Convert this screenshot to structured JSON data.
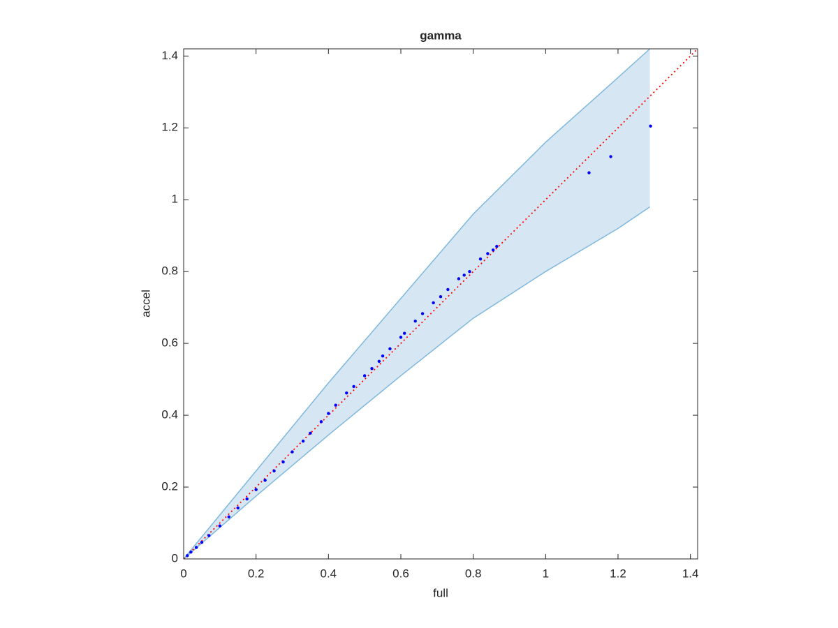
{
  "chart_data": {
    "type": "scatter",
    "title": "gamma",
    "x_label": "full",
    "y_label": "accel",
    "xlim": [
      0,
      1.42
    ],
    "ylim": [
      0,
      1.42
    ],
    "xticks": [
      0,
      0.2,
      0.4,
      0.6,
      0.8,
      1,
      1.2,
      1.4
    ],
    "yticks": [
      0,
      0.2,
      0.4,
      0.6,
      0.8,
      1,
      1.2,
      1.4
    ],
    "band": {
      "color": "#7fb8dc",
      "fill": "#d6e6f3",
      "x": [
        0,
        0.2,
        0.4,
        0.6,
        0.8,
        1.0,
        1.2,
        1.288
      ],
      "upper": [
        0,
        0.245,
        0.49,
        0.725,
        0.96,
        1.16,
        1.34,
        1.42
      ],
      "lower": [
        0,
        0.175,
        0.345,
        0.51,
        0.67,
        0.8,
        0.92,
        0.98
      ]
    },
    "reference_line": {
      "color": "#ff0000",
      "x": [
        0,
        1.42
      ],
      "y": [
        0,
        1.42
      ]
    },
    "series": [
      {
        "color": "#0000ff",
        "x": [
          0.01,
          0.02,
          0.035,
          0.05,
          0.07,
          0.1,
          0.125,
          0.15,
          0.175,
          0.2,
          0.225,
          0.25,
          0.275,
          0.3,
          0.33,
          0.35,
          0.38,
          0.4,
          0.42,
          0.45,
          0.47,
          0.5,
          0.52,
          0.54,
          0.55,
          0.57,
          0.6,
          0.61,
          0.64,
          0.66,
          0.69,
          0.71,
          0.73,
          0.76,
          0.775,
          0.79,
          0.82,
          0.84,
          0.855,
          0.865,
          1.12,
          1.18,
          1.29
        ],
        "values": [
          0.009,
          0.019,
          0.032,
          0.046,
          0.065,
          0.092,
          0.117,
          0.142,
          0.167,
          0.193,
          0.219,
          0.245,
          0.27,
          0.298,
          0.328,
          0.35,
          0.382,
          0.405,
          0.428,
          0.462,
          0.48,
          0.51,
          0.53,
          0.55,
          0.565,
          0.585,
          0.617,
          0.628,
          0.662,
          0.683,
          0.713,
          0.73,
          0.75,
          0.78,
          0.79,
          0.8,
          0.835,
          0.85,
          0.86,
          0.87,
          1.075,
          1.12,
          1.205
        ]
      }
    ]
  }
}
